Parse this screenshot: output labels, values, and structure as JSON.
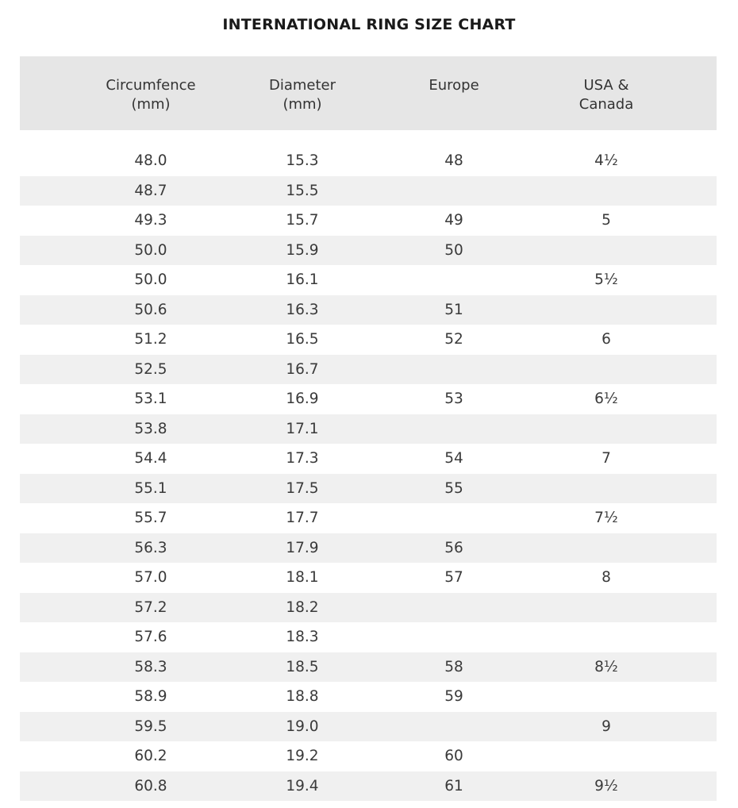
{
  "title": "INTERNATIONAL RING SIZE CHART",
  "headers": {
    "circumference": "Circumfence\n(mm)",
    "diameter": "Diameter\n(mm)",
    "europe": "Europe",
    "usa": "USA &\nCanada"
  },
  "rows": [
    [
      "48.0",
      "15.3",
      "48",
      "4½"
    ],
    [
      "48.7",
      "15.5",
      "",
      ""
    ],
    [
      "49.3",
      "15.7",
      "49",
      "5"
    ],
    [
      "50.0",
      "15.9",
      "50",
      ""
    ],
    [
      "50.0",
      "16.1",
      "",
      "5½"
    ],
    [
      "50.6",
      "16.3",
      "51",
      ""
    ],
    [
      "51.2",
      "16.5",
      "52",
      "6"
    ],
    [
      "52.5",
      "16.7",
      "",
      ""
    ],
    [
      "53.1",
      "16.9",
      "53",
      "6½"
    ],
    [
      "53.8",
      "17.1",
      "",
      ""
    ],
    [
      "54.4",
      "17.3",
      "54",
      "7"
    ],
    [
      "55.1",
      "17.5",
      "55",
      ""
    ],
    [
      "55.7",
      "17.7",
      "",
      "7½"
    ],
    [
      "56.3",
      "17.9",
      "56",
      ""
    ],
    [
      "57.0",
      "18.1",
      "57",
      "8"
    ],
    [
      "57.2",
      "18.2",
      "",
      ""
    ],
    [
      "57.6",
      "18.3",
      "",
      ""
    ],
    [
      "58.3",
      "18.5",
      "58",
      "8½"
    ],
    [
      "58.9",
      "18.8",
      "59",
      ""
    ],
    [
      "59.5",
      "19.0",
      "",
      "9"
    ],
    [
      "60.2",
      "19.2",
      "60",
      ""
    ],
    [
      "60.8",
      "19.4",
      "61",
      "9½"
    ]
  ],
  "colors": {
    "header_bg": "#e6e6e6",
    "stripe_bg": "#f0f0f0",
    "text": "#333333"
  }
}
